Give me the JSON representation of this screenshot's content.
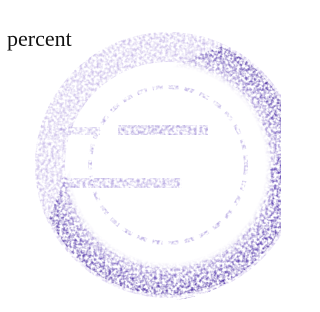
{
  "text": "percent"
}
